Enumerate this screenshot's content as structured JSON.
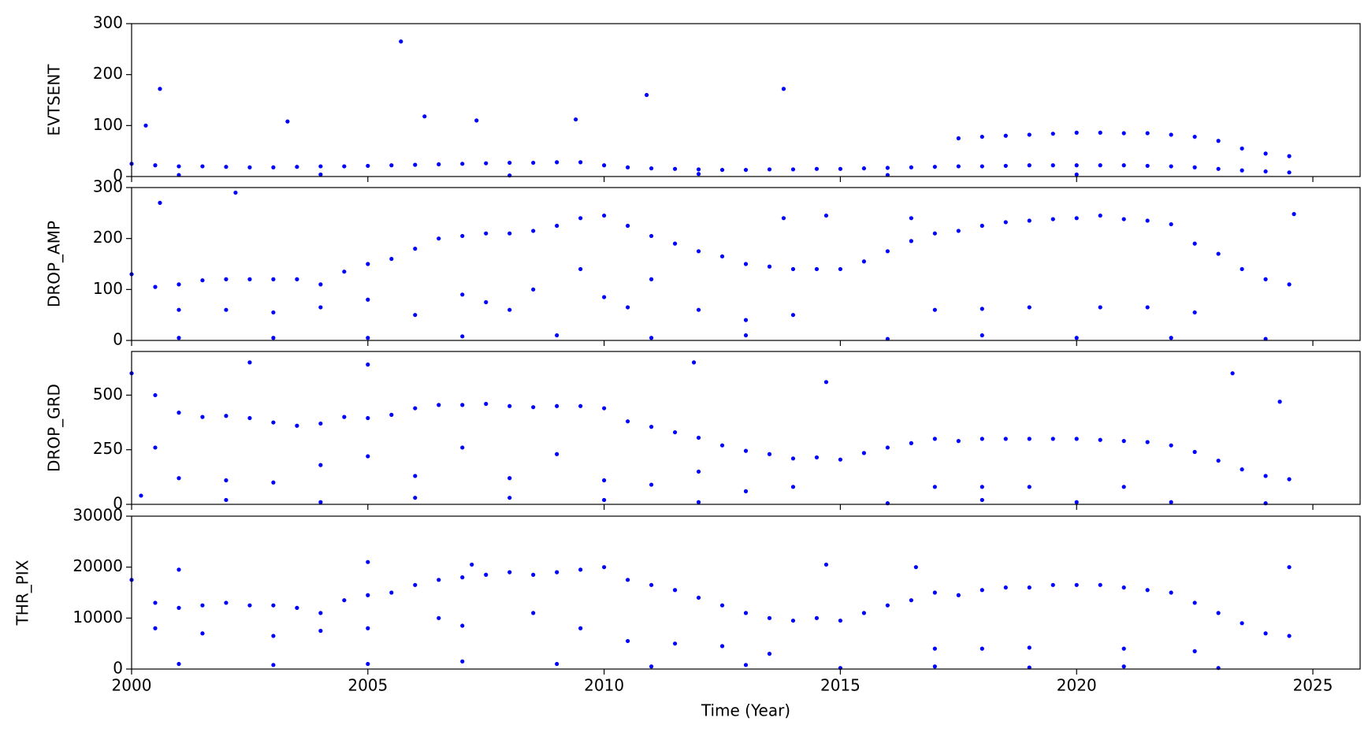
{
  "chart_data": [
    {
      "type": "scatter",
      "ylabel": "EVTSENT",
      "color": "#0000ff",
      "xlim": [
        2000,
        2026
      ],
      "xticks": [
        2000,
        2005,
        2010,
        2015,
        2020,
        2025
      ],
      "ylim": [
        0,
        300
      ],
      "yticks": [
        0,
        100,
        200,
        300
      ],
      "x": [
        2000,
        2000.5,
        2001,
        2001.5,
        2002,
        2002.5,
        2003,
        2003.5,
        2004,
        2004.5,
        2005,
        2005.5,
        2006,
        2006.5,
        2007,
        2007.5,
        2008,
        2008.5,
        2009,
        2009.5,
        2010,
        2010.5,
        2011,
        2011.5,
        2012,
        2012.5,
        2013,
        2013.5,
        2014,
        2014.5,
        2015,
        2015.5,
        2016,
        2016.5,
        2017,
        2017.5,
        2018,
        2018.5,
        2019,
        2019.5,
        2020,
        2020.5,
        2021,
        2021.5,
        2022,
        2022.5,
        2023,
        2023.5,
        2024,
        2024.5,
        2017.5,
        2018,
        2018.5,
        2019,
        2019.5,
        2020,
        2020.5,
        2021,
        2021.5,
        2022,
        2022.5,
        2023,
        2023.5,
        2024,
        2024.5,
        2000.3,
        2000.6,
        2003.3,
        2005.7,
        2006.2,
        2007.3,
        2009.4,
        2010.9,
        2013.8,
        2001,
        2004,
        2008,
        2012,
        2016,
        2020
      ],
      "values": [
        25,
        22,
        20,
        20,
        19,
        18,
        18,
        19,
        20,
        20,
        21,
        22,
        23,
        24,
        25,
        26,
        27,
        27,
        28,
        28,
        22,
        18,
        16,
        15,
        14,
        13,
        13,
        14,
        14,
        15,
        15,
        16,
        17,
        18,
        19,
        20,
        20,
        21,
        22,
        22,
        22,
        22,
        22,
        21,
        20,
        18,
        15,
        12,
        10,
        8,
        75,
        78,
        80,
        82,
        84,
        86,
        86,
        85,
        85,
        82,
        78,
        70,
        55,
        45,
        40,
        100,
        172,
        108,
        265,
        118,
        110,
        112,
        160,
        172,
        3,
        4,
        2,
        5,
        3,
        4
      ]
    },
    {
      "type": "scatter",
      "ylabel": "DROP_AMP",
      "color": "#0000ff",
      "xlim": [
        2000,
        2026
      ],
      "xticks": [
        2000,
        2005,
        2010,
        2015,
        2020,
        2025
      ],
      "ylim": [
        0,
        300
      ],
      "yticks": [
        0,
        100,
        200,
        300
      ],
      "x": [
        2000,
        2000.5,
        2001,
        2001.5,
        2002,
        2002.5,
        2003,
        2003.5,
        2004,
        2004.5,
        2005,
        2005.5,
        2006,
        2006.5,
        2007,
        2007.5,
        2008,
        2008.5,
        2009,
        2009.5,
        2010,
        2010.5,
        2011,
        2011.5,
        2012,
        2012.5,
        2013,
        2013.5,
        2014,
        2014.5,
        2015,
        2015.5,
        2016,
        2016.5,
        2017,
        2017.5,
        2018,
        2018.5,
        2019,
        2019.5,
        2020,
        2020.5,
        2021,
        2021.5,
        2022,
        2022.5,
        2023,
        2023.5,
        2024,
        2024.5,
        2001,
        2002,
        2003,
        2004,
        2005,
        2006,
        2007,
        2007.5,
        2008,
        2008.5,
        2009.5,
        2010,
        2010.5,
        2011,
        2012,
        2013,
        2014,
        2017,
        2018,
        2019,
        2020.5,
        2021.5,
        2022.5,
        2001,
        2003,
        2005,
        2007,
        2009,
        2011,
        2013,
        2016,
        2018,
        2020,
        2022,
        2024,
        2000.6,
        2002.2,
        2013.8,
        2014.7,
        2016.5,
        2024.6
      ],
      "values": [
        130,
        105,
        110,
        118,
        120,
        120,
        120,
        120,
        110,
        135,
        150,
        160,
        180,
        200,
        205,
        210,
        210,
        215,
        225,
        240,
        245,
        225,
        205,
        190,
        175,
        165,
        150,
        145,
        140,
        140,
        140,
        155,
        175,
        195,
        210,
        215,
        225,
        232,
        235,
        238,
        240,
        245,
        238,
        235,
        228,
        190,
        170,
        140,
        120,
        110,
        60,
        60,
        55,
        65,
        80,
        50,
        90,
        75,
        60,
        100,
        140,
        85,
        65,
        120,
        60,
        40,
        50,
        60,
        62,
        65,
        65,
        65,
        55,
        5,
        5,
        5,
        8,
        10,
        5,
        10,
        3,
        10,
        5,
        5,
        3,
        270,
        290,
        240,
        245,
        240,
        248
      ]
    },
    {
      "type": "scatter",
      "ylabel": "DROP_GRD",
      "color": "#0000ff",
      "xlim": [
        2000,
        2026
      ],
      "xticks": [
        2000,
        2005,
        2010,
        2015,
        2020,
        2025
      ],
      "ylim": [
        0,
        700
      ],
      "yticks": [
        0,
        250,
        500
      ],
      "x": [
        2000,
        2000.5,
        2001,
        2001.5,
        2002,
        2002.5,
        2003,
        2003.5,
        2004,
        2004.5,
        2005,
        2005.5,
        2006,
        2006.5,
        2007,
        2007.5,
        2008,
        2008.5,
        2009,
        2009.5,
        2010,
        2010.5,
        2011,
        2011.5,
        2012,
        2012.5,
        2013,
        2013.5,
        2014,
        2014.5,
        2015,
        2015.5,
        2016,
        2016.5,
        2017,
        2017.5,
        2018,
        2018.5,
        2019,
        2019.5,
        2020,
        2020.5,
        2021,
        2021.5,
        2022,
        2022.5,
        2023,
        2023.5,
        2024,
        2024.5,
        2000.5,
        2001,
        2002,
        2003,
        2004,
        2005,
        2006,
        2007,
        2008,
        2009,
        2010,
        2011,
        2012,
        2013,
        2014,
        2017,
        2018,
        2019,
        2021,
        2000.2,
        2002,
        2004,
        2006,
        2008,
        2010,
        2012,
        2016,
        2018,
        2020,
        2022,
        2024,
        2002.5,
        2005,
        2011.9,
        2014.7,
        2023.3,
        2024.3
      ],
      "values": [
        600,
        500,
        420,
        400,
        405,
        395,
        375,
        360,
        370,
        400,
        395,
        410,
        440,
        455,
        455,
        460,
        450,
        445,
        450,
        450,
        440,
        380,
        355,
        330,
        305,
        270,
        245,
        230,
        210,
        215,
        205,
        235,
        260,
        280,
        300,
        290,
        300,
        300,
        300,
        300,
        300,
        295,
        290,
        285,
        270,
        240,
        200,
        160,
        130,
        115,
        260,
        120,
        110,
        100,
        180,
        220,
        130,
        260,
        120,
        230,
        110,
        90,
        150,
        60,
        80,
        80,
        80,
        80,
        80,
        40,
        20,
        10,
        30,
        30,
        20,
        10,
        5,
        20,
        10,
        10,
        5,
        650,
        640,
        650,
        560,
        600,
        470
      ]
    },
    {
      "type": "scatter",
      "ylabel": "THR_PIX",
      "xlabel": "Time (Year)",
      "color": "#0000ff",
      "xlim": [
        2000,
        2026
      ],
      "xticks": [
        2000,
        2005,
        2010,
        2015,
        2020,
        2025
      ],
      "ylim": [
        0,
        30000
      ],
      "yticks": [
        0,
        10000,
        20000,
        30000
      ],
      "x": [
        2000,
        2000.5,
        2001,
        2001.5,
        2002,
        2002.5,
        2003,
        2003.5,
        2004,
        2004.5,
        2005,
        2005.5,
        2006,
        2006.5,
        2007,
        2007.5,
        2008,
        2008.5,
        2009,
        2009.5,
        2010,
        2010.5,
        2011,
        2011.5,
        2012,
        2012.5,
        2013,
        2013.5,
        2014,
        2014.5,
        2015,
        2015.5,
        2016,
        2016.5,
        2017,
        2017.5,
        2018,
        2018.5,
        2019,
        2019.5,
        2020,
        2020.5,
        2021,
        2021.5,
        2022,
        2022.5,
        2023,
        2023.5,
        2024,
        2024.5,
        2000.5,
        2001.5,
        2003,
        2004,
        2005,
        2006.5,
        2007,
        2008.5,
        2009.5,
        2010.5,
        2011.5,
        2012.5,
        2013.5,
        2017,
        2018,
        2019,
        2021,
        2022.5,
        2001,
        2003,
        2005,
        2007,
        2009,
        2011,
        2013,
        2015,
        2017,
        2019,
        2021,
        2023,
        2005,
        2007.2,
        2014.7,
        2016.6,
        2024.5,
        2001
      ],
      "values": [
        17500,
        13000,
        12000,
        12500,
        13000,
        12500,
        12500,
        12000,
        11000,
        13500,
        14500,
        15000,
        16500,
        17500,
        18000,
        18500,
        19000,
        18500,
        19000,
        19500,
        20000,
        17500,
        16500,
        15500,
        14000,
        12500,
        11000,
        10000,
        9500,
        10000,
        9500,
        11000,
        12500,
        13500,
        15000,
        14500,
        15500,
        16000,
        16000,
        16500,
        16500,
        16500,
        16000,
        15500,
        15000,
        13000,
        11000,
        9000,
        7000,
        6500,
        8000,
        7000,
        6500,
        7500,
        8000,
        10000,
        8500,
        11000,
        8000,
        5500,
        5000,
        4500,
        3000,
        4000,
        4000,
        4200,
        4000,
        3500,
        1000,
        800,
        1000,
        1500,
        1000,
        500,
        800,
        200,
        500,
        300,
        500,
        200,
        21000,
        20500,
        20500,
        20000,
        20000,
        19500
      ]
    }
  ]
}
